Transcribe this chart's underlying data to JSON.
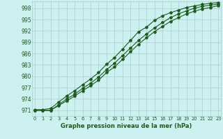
{
  "title": "Graphe pression niveau de la mer (hPa)",
  "background_color": "#cdf0f0",
  "grid_color": "#aacccc",
  "line_color": "#1a5c1a",
  "x_labels": [
    "0",
    "1",
    "2",
    "3",
    "4",
    "5",
    "6",
    "7",
    "8",
    "9",
    "10",
    "11",
    "12",
    "13",
    "14",
    "15",
    "16",
    "17",
    "18",
    "19",
    "20",
    "21",
    "22",
    "23"
  ],
  "y_ticks": [
    971,
    974,
    977,
    980,
    983,
    986,
    989,
    992,
    995,
    998
  ],
  "ylim": [
    969.5,
    999.8
  ],
  "xlim": [
    -0.3,
    23.3
  ],
  "series1": [
    971.0,
    971.0,
    971.0,
    972.3,
    973.5,
    974.8,
    976.2,
    977.5,
    979.0,
    981.0,
    982.5,
    984.5,
    986.5,
    988.5,
    990.2,
    991.8,
    993.2,
    994.5,
    995.5,
    996.5,
    997.2,
    997.8,
    998.2,
    998.7
  ],
  "series2": [
    971.0,
    971.0,
    971.0,
    972.5,
    974.0,
    975.3,
    976.8,
    978.2,
    979.8,
    981.8,
    983.5,
    985.5,
    987.5,
    989.5,
    991.2,
    992.8,
    994.2,
    995.5,
    996.5,
    997.3,
    998.0,
    998.5,
    998.8,
    999.1
  ],
  "series3": [
    971.2,
    971.2,
    971.5,
    973.2,
    974.8,
    976.2,
    977.8,
    979.3,
    981.0,
    983.2,
    985.0,
    987.2,
    989.5,
    991.8,
    993.0,
    994.8,
    996.0,
    996.8,
    997.5,
    998.2,
    998.6,
    999.0,
    999.3,
    999.5
  ]
}
